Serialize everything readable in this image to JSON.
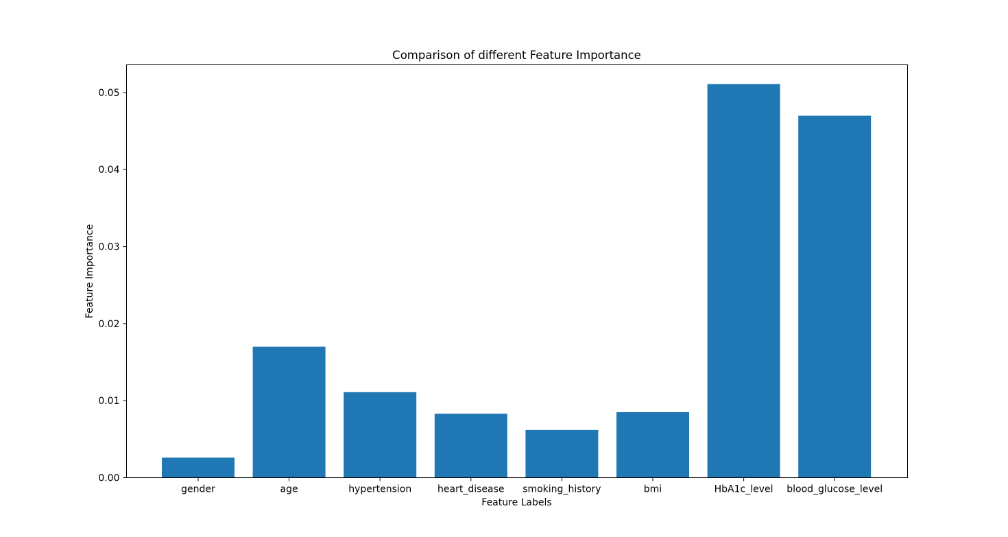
{
  "chart_data": {
    "type": "bar",
    "title": "Comparison of different Feature Importance",
    "xlabel": "Feature Labels",
    "ylabel": "Feature Importance",
    "categories": [
      "gender",
      "age",
      "hypertension",
      "heart_disease",
      "smoking_history",
      "bmi",
      "HbA1c_level",
      "blood_glucose_level"
    ],
    "values": [
      0.0026,
      0.017,
      0.0111,
      0.0083,
      0.0062,
      0.0085,
      0.0511,
      0.047
    ],
    "ylim": [
      0,
      0.0536
    ],
    "yticks": [
      0.0,
      0.01,
      0.02,
      0.03,
      0.04,
      0.05
    ],
    "ytick_labels": [
      "0.00",
      "0.01",
      "0.02",
      "0.03",
      "0.04",
      "0.05"
    ],
    "bar_color": "#1f77b4",
    "grid": false,
    "legend": "none"
  }
}
